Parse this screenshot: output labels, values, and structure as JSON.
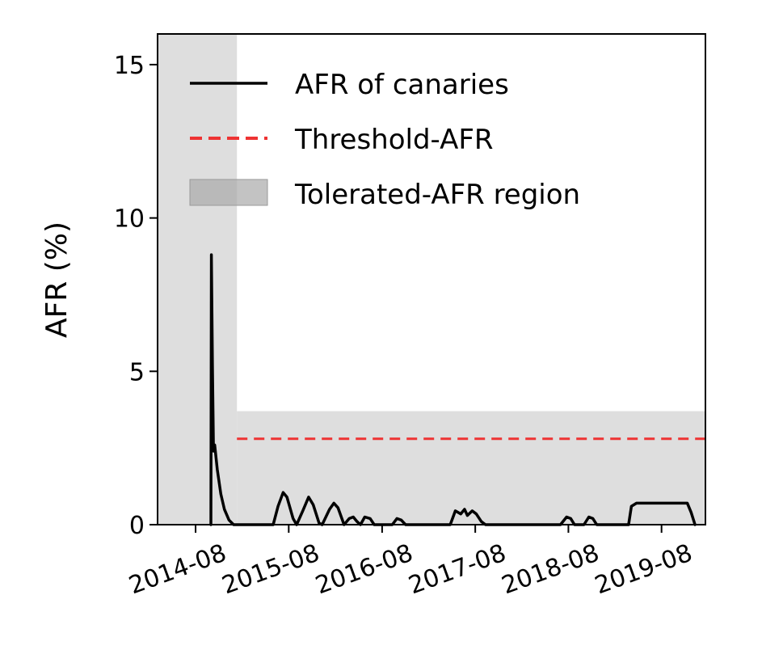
{
  "chart_data": {
    "type": "line",
    "title": "",
    "xlabel": "",
    "ylabel": "AFR (%)",
    "xlim": [
      "2014-03-05",
      "2020-01-20"
    ],
    "ylim": [
      0,
      16
    ],
    "x_ticks": [
      "2014-08",
      "2015-08",
      "2016-08",
      "2017-08",
      "2018-08",
      "2019-08"
    ],
    "y_ticks": [
      0,
      5,
      10,
      15
    ],
    "grid": false,
    "legend": {
      "placement": "top-right",
      "entries": [
        "AFR of canaries",
        "Threshold-AFR",
        "Tolerated-AFR region"
      ]
    },
    "colors": {
      "line": "#000000",
      "threshold": "#ee3333",
      "region": "#dedede",
      "legend_patch": "#a9a9a9"
    },
    "shaded_regions": [
      {
        "name": "Tolerated-AFR region",
        "x_start": "2014-03-05",
        "x_end": "2015-01-10",
        "y_top": 16
      },
      {
        "name": "Tolerated-AFR region",
        "x_start": "2015-01-10",
        "x_end": "2020-01-20",
        "y_top": 3.7
      }
    ],
    "threshold": {
      "name": "Threshold-AFR",
      "y": 2.8,
      "x_start": "2015-01-10",
      "x_end": "2020-01-20"
    },
    "series": [
      {
        "name": "AFR of canaries",
        "points": [
          [
            "2014-09-30",
            0
          ],
          [
            "2014-10-02",
            8.8
          ],
          [
            "2014-10-06",
            5.2
          ],
          [
            "2014-10-10",
            2.4
          ],
          [
            "2014-10-15",
            2.6
          ],
          [
            "2014-10-25",
            1.8
          ],
          [
            "2014-11-08",
            1.0
          ],
          [
            "2014-11-22",
            0.5
          ],
          [
            "2014-12-10",
            0.15
          ],
          [
            "2014-12-28",
            0
          ],
          [
            "2015-06-01",
            0
          ],
          [
            "2015-06-20",
            0.6
          ],
          [
            "2015-07-10",
            1.05
          ],
          [
            "2015-07-25",
            0.9
          ],
          [
            "2015-08-18",
            0.2
          ],
          [
            "2015-09-01",
            0
          ],
          [
            "2015-09-25",
            0.45
          ],
          [
            "2015-10-18",
            0.9
          ],
          [
            "2015-11-05",
            0.65
          ],
          [
            "2015-11-28",
            0.05
          ],
          [
            "2015-12-10",
            0
          ],
          [
            "2016-01-08",
            0.5
          ],
          [
            "2016-01-25",
            0.7
          ],
          [
            "2016-02-10",
            0.55
          ],
          [
            "2016-03-05",
            0
          ],
          [
            "2016-03-25",
            0.2
          ],
          [
            "2016-04-10",
            0.25
          ],
          [
            "2016-04-25",
            0.1
          ],
          [
            "2016-05-08",
            0
          ],
          [
            "2016-05-25",
            0.25
          ],
          [
            "2016-06-15",
            0.2
          ],
          [
            "2016-07-01",
            0
          ],
          [
            "2016-09-10",
            0
          ],
          [
            "2016-09-28",
            0.2
          ],
          [
            "2016-10-15",
            0.15
          ],
          [
            "2016-11-01",
            0
          ],
          [
            "2017-04-25",
            0
          ],
          [
            "2017-05-15",
            0.45
          ],
          [
            "2017-06-05",
            0.35
          ],
          [
            "2017-06-20",
            0.5
          ],
          [
            "2017-07-01",
            0.3
          ],
          [
            "2017-07-20",
            0.45
          ],
          [
            "2017-08-05",
            0.35
          ],
          [
            "2017-08-25",
            0.1
          ],
          [
            "2017-09-10",
            0
          ],
          [
            "2018-07-01",
            0
          ],
          [
            "2018-07-25",
            0.25
          ],
          [
            "2018-08-10",
            0.2
          ],
          [
            "2018-08-25",
            0
          ],
          [
            "2018-10-01",
            0
          ],
          [
            "2018-10-20",
            0.25
          ],
          [
            "2018-11-05",
            0.2
          ],
          [
            "2018-11-20",
            0
          ],
          [
            "2019-03-25",
            0
          ],
          [
            "2019-04-05",
            0.6
          ],
          [
            "2019-04-25",
            0.7
          ],
          [
            "2019-11-10",
            0.7
          ],
          [
            "2019-11-25",
            0.4
          ],
          [
            "2019-12-10",
            0
          ]
        ]
      }
    ]
  }
}
